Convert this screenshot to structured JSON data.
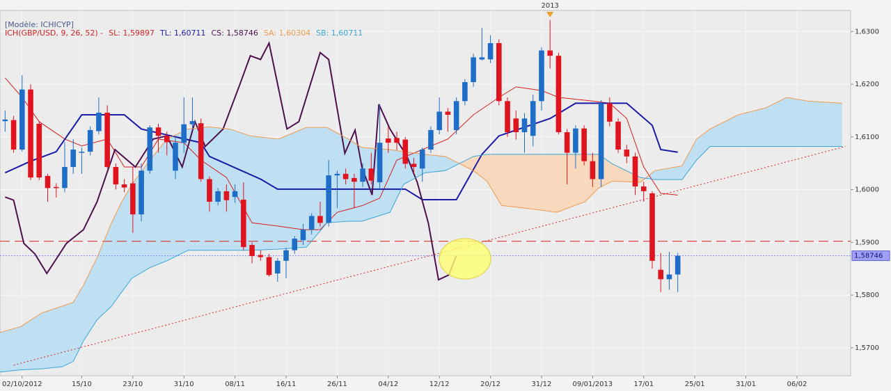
{
  "chart_data": {
    "type": "candlestick",
    "title": "[Modèle: ICHICYP]",
    "indicator": "ICH(GBP/USD, 9, 26, 52) -",
    "up_color": "#1e6ec8",
    "down_color": "#e0141e",
    "xlim": [
      -0.6,
      99.3
    ],
    "ylim": [
      1.5647,
      1.634
    ],
    "grid": true,
    "yticks": [
      {
        "value": 1.57,
        "label": "1,5700"
      },
      {
        "value": 1.58,
        "label": "1,5800"
      },
      {
        "value": 1.59,
        "label": "1,5900"
      },
      {
        "value": 1.6,
        "label": "1,6000"
      },
      {
        "value": 1.61,
        "label": "1,6100"
      },
      {
        "value": 1.62,
        "label": "1,6200"
      },
      {
        "value": 1.63,
        "label": "1,6300"
      }
    ],
    "xticks": [
      {
        "value": 2,
        "label": "02/10/2012"
      },
      {
        "value": 9,
        "label": "15/10"
      },
      {
        "value": 15,
        "label": "23/10"
      },
      {
        "value": 21,
        "label": "31/10"
      },
      {
        "value": 27,
        "label": "08/11"
      },
      {
        "value": 33,
        "label": "16/11"
      },
      {
        "value": 39,
        "label": "26/11"
      },
      {
        "value": 45,
        "label": "04/12"
      },
      {
        "value": 51,
        "label": "12/12"
      },
      {
        "value": 57,
        "label": "20/12"
      },
      {
        "value": 63,
        "label": "31/12"
      },
      {
        "value": 69,
        "label": "09/01/2013"
      },
      {
        "value": 75,
        "label": "17/01"
      },
      {
        "value": 81,
        "label": "25/01"
      },
      {
        "value": 87,
        "label": "31/01"
      },
      {
        "value": 93,
        "label": "06/02"
      }
    ],
    "x": [
      0,
      1,
      2,
      3,
      4,
      5,
      6,
      7,
      8,
      9,
      10,
      11,
      12,
      13,
      14,
      15,
      16,
      17,
      18,
      19,
      20,
      21,
      22,
      23,
      24,
      25,
      26,
      27,
      28,
      29,
      30,
      31,
      32,
      33,
      34,
      35,
      36,
      37,
      38,
      39,
      40,
      41,
      42,
      43,
      44,
      45,
      46,
      47,
      48,
      49,
      50,
      51,
      52,
      53,
      54,
      55,
      56,
      57,
      58,
      59,
      60,
      61,
      62,
      63,
      64,
      65,
      66,
      67,
      68,
      69,
      70,
      71,
      72,
      73,
      74,
      75,
      76,
      77,
      78,
      79
    ],
    "open": [
      1.613,
      1.6132,
      1.6076,
      1.619,
      1.6125,
      1.6026,
      1.6005,
      1.6003,
      1.6043,
      1.607,
      1.6072,
      1.6111,
      1.6146,
      1.6043,
      1.601,
      1.6012,
      1.5953,
      1.6036,
      1.6118,
      1.6102,
      1.6036,
      1.6089,
      1.6124,
      1.6126,
      1.602,
      1.5977,
      1.5997,
      1.5986,
      1.5981,
      1.5895,
      1.5876,
      1.5872,
      1.5841,
      1.5865,
      1.5885,
      1.5904,
      1.5924,
      1.595,
      1.5937,
      1.6027,
      1.603,
      1.6022,
      1.6015,
      1.604,
      1.6014,
      1.6097,
      1.6098,
      1.6095,
      1.6049,
      1.604,
      1.6076,
      1.6113,
      1.6148,
      1.6113,
      1.6168,
      1.6204,
      1.6247,
      1.6247,
      1.6278,
      1.6168,
      1.6135,
      1.6109,
      1.6102,
      1.6168,
      1.6264,
      1.6254,
      1.6109,
      1.607,
      1.6116,
      1.6054,
      1.602,
      1.6164,
      1.6129,
      1.6076,
      1.6063,
      1.6006,
      1.5993,
      1.5848,
      1.583,
      1.5839
    ],
    "high": [
      1.615,
      1.614,
      1.6217,
      1.62,
      1.613,
      1.603,
      1.6012,
      1.609,
      1.6096,
      1.608,
      1.612,
      1.6175,
      1.616,
      1.605,
      1.602,
      1.6043,
      1.605,
      1.6122,
      1.6125,
      1.611,
      1.61,
      1.6175,
      1.6175,
      1.6135,
      1.6025,
      1.6003,
      1.601,
      1.601,
      1.6014,
      1.59,
      1.5885,
      1.5878,
      1.587,
      1.589,
      1.5912,
      1.5935,
      1.5955,
      1.5977,
      1.6056,
      1.6036,
      1.604,
      1.603,
      1.605,
      1.607,
      1.6162,
      1.612,
      1.611,
      1.61,
      1.606,
      1.608,
      1.612,
      1.6175,
      1.6155,
      1.6175,
      1.621,
      1.6258,
      1.6307,
      1.6293,
      1.6285,
      1.6175,
      1.615,
      1.6145,
      1.618,
      1.627,
      1.6322,
      1.626,
      1.6115,
      1.6122,
      1.6122,
      1.607,
      1.617,
      1.6175,
      1.6135,
      1.6085,
      1.607,
      1.6015,
      1.5997,
      1.588,
      1.5882,
      1.588
    ],
    "low": [
      1.611,
      1.607,
      1.6072,
      1.6018,
      1.6018,
      1.5977,
      1.5985,
      1.5995,
      1.603,
      1.603,
      1.6065,
      1.6105,
      1.604,
      1.6,
      1.5995,
      1.5918,
      1.594,
      1.603,
      1.607,
      1.6065,
      1.602,
      1.607,
      1.6115,
      1.6015,
      1.5958,
      1.597,
      1.5958,
      1.5975,
      1.5885,
      1.586,
      1.5865,
      1.5835,
      1.5825,
      1.5832,
      1.5878,
      1.5895,
      1.5915,
      1.593,
      1.593,
      1.5965,
      1.601,
      1.5965,
      1.6005,
      1.601,
      1.6,
      1.607,
      1.6075,
      1.604,
      1.603,
      1.6015,
      1.607,
      1.6105,
      1.611,
      1.6105,
      1.616,
      1.6195,
      1.6245,
      1.624,
      1.616,
      1.61,
      1.6095,
      1.607,
      1.6082,
      1.615,
      1.623,
      1.6105,
      1.601,
      1.604,
      1.6046,
      1.6005,
      1.6005,
      1.612,
      1.607,
      1.605,
      1.599,
      1.5977,
      1.585,
      1.5806,
      1.581,
      1.5806
    ],
    "close": [
      1.6133,
      1.6076,
      1.619,
      1.6023,
      1.6023,
      1.6003,
      1.6003,
      1.6043,
      1.6076,
      1.6072,
      1.6113,
      1.6146,
      1.6043,
      1.601,
      1.6004,
      1.5953,
      1.6036,
      1.6118,
      1.6102,
      1.609,
      1.6089,
      1.6124,
      1.613,
      1.602,
      1.5977,
      1.5997,
      1.598,
      1.5997,
      1.5891,
      1.5874,
      1.5872,
      1.5838,
      1.5865,
      1.5885,
      1.5907,
      1.5924,
      1.595,
      1.5937,
      1.6027,
      1.603,
      1.602,
      1.6015,
      1.604,
      1.6017,
      1.6089,
      1.6089,
      1.6089,
      1.6049,
      1.6043,
      1.6076,
      1.6113,
      1.6148,
      1.6142,
      1.6168,
      1.6204,
      1.6251,
      1.6251,
      1.6278,
      1.6168,
      1.6109,
      1.6109,
      1.6135,
      1.6168,
      1.6264,
      1.6254,
      1.6109,
      1.607,
      1.6116,
      1.6054,
      1.602,
      1.6164,
      1.6129,
      1.6076,
      1.6063,
      1.6006,
      1.5997,
      1.5865,
      1.583,
      1.5839,
      1.58746
    ],
    "lines": [
      {
        "label": "SL: 1,59897",
        "color": "#d42020",
        "x": [
          0,
          2,
          4,
          7,
          9,
          12,
          14,
          16,
          18,
          21,
          23,
          26,
          29,
          32,
          35,
          37,
          39,
          42,
          44,
          46,
          49,
          52,
          55,
          58,
          60,
          63,
          65,
          69,
          71,
          73,
          75,
          77,
          79
        ],
        "values": [
          1.6212,
          1.6175,
          1.6129,
          1.6096,
          1.6083,
          1.6096,
          1.6043,
          1.6043,
          1.6096,
          1.6089,
          1.6056,
          1.6023,
          1.5937,
          1.5931,
          1.5924,
          1.5924,
          1.5957,
          1.597,
          1.5984,
          1.6056,
          1.6076,
          1.6096,
          1.6142,
          1.6175,
          1.6195,
          1.6188,
          1.6175,
          1.6168,
          1.6164,
          1.6135,
          1.6043,
          1.5993,
          1.59897
        ]
      },
      {
        "label": "TL: 1,60711",
        "color": "#1a1aa8",
        "x": [
          0,
          3,
          6,
          9,
          14,
          16,
          23,
          24,
          30,
          32,
          47,
          49,
          53,
          56,
          58,
          64,
          67,
          73,
          76,
          77,
          79
        ],
        "values": [
          1.6032,
          1.6054,
          1.6072,
          1.6142,
          1.6142,
          1.6115,
          1.6089,
          1.6063,
          1.602,
          1.6001,
          1.6001,
          1.5981,
          1.5981,
          1.6067,
          1.6102,
          1.6135,
          1.6164,
          1.6164,
          1.6122,
          1.6076,
          1.60711
        ]
      },
      {
        "label": "CS: 1,58746",
        "color": "#4d0f4d",
        "x": [
          0,
          1.0,
          2.2,
          3.5,
          4.9,
          7.2,
          9.2,
          10.8,
          12.9,
          15.3,
          17.4,
          19.0,
          20.8,
          22.3,
          23.5,
          25.6,
          27.6,
          28.8,
          30.0,
          31.0,
          33.1,
          34.5,
          37.0,
          38.0,
          39.9,
          41.1,
          41.9,
          43.1,
          43.9,
          45.2,
          47.2,
          48.4,
          49.7,
          50.9,
          52.1,
          53
        ],
        "values": [
          1.5986,
          1.598,
          1.5898,
          1.5878,
          1.5841,
          1.5898,
          1.5924,
          1.5977,
          1.6076,
          1.6043,
          1.6096,
          1.6102,
          1.6043,
          1.6129,
          1.6082,
          1.6115,
          1.6201,
          1.6254,
          1.6247,
          1.6278,
          1.6115,
          1.6129,
          1.626,
          1.6247,
          1.6069,
          1.6113,
          1.6043,
          1.599,
          1.6162,
          1.6115,
          1.6063,
          1.6014,
          1.5937,
          1.5829,
          1.5838,
          1.58746
        ]
      },
      {
        "label": "SA: 1,60304",
        "color": "#f09a50",
        "x": [
          -0.6,
          1.8,
          4.3,
          6.7,
          8.0,
          9.2,
          10.8,
          12.5,
          13.7,
          14.9,
          17.0,
          19.0,
          21.5,
          23.9,
          26.4,
          28.8,
          32.1,
          35.4,
          37.8,
          40.3,
          41.9,
          45.2,
          46.8,
          49.3,
          51.7,
          55.0,
          56.6,
          58.3,
          61.5,
          64.8,
          68.1,
          69.7,
          71.3,
          74.6,
          76.3,
          79.5,
          81.2,
          82.8,
          86.1,
          89.3,
          91.8,
          94.2,
          98.3
        ],
        "values": [
          1.5729,
          1.574,
          1.5766,
          1.5779,
          1.5786,
          1.5819,
          1.5871,
          1.5937,
          1.5977,
          1.601,
          1.6056,
          1.6096,
          1.6115,
          1.6119,
          1.6115,
          1.6102,
          1.6096,
          1.6118,
          1.6118,
          1.6096,
          1.608,
          1.6076,
          1.6072,
          1.6067,
          1.6063,
          1.6036,
          1.6016,
          1.597,
          1.5964,
          1.5957,
          1.5977,
          1.6003,
          1.6016,
          1.6014,
          1.6036,
          1.6045,
          1.6096,
          1.6115,
          1.6142,
          1.6155,
          1.6175,
          1.6168,
          1.6164
        ]
      },
      {
        "label": "SB: 1,60711",
        "color": "#3aa6d8",
        "x": [
          -0.6,
          1.8,
          4.3,
          6.7,
          8.0,
          9.2,
          10.8,
          12.5,
          13.7,
          14.9,
          17.0,
          19.0,
          21.5,
          23.9,
          26.4,
          28.8,
          32.1,
          35.4,
          37.8,
          40.3,
          41.9,
          45.2,
          46.8,
          49.3,
          51.7,
          55.0,
          56.6,
          58.3,
          61.5,
          64.8,
          68.1,
          69.7,
          71.3,
          74.6,
          76.3,
          79.5,
          81.2,
          82.8,
          86.1,
          89.3,
          91.8,
          94.2,
          98.3
        ],
        "values": [
          1.5654,
          1.5658,
          1.566,
          1.5664,
          1.5674,
          1.5713,
          1.5753,
          1.5779,
          1.5806,
          1.5832,
          1.5852,
          1.5865,
          1.5885,
          1.5885,
          1.5885,
          1.5885,
          1.5887,
          1.5891,
          1.5937,
          1.594,
          1.594,
          1.5957,
          1.601,
          1.6032,
          1.6036,
          1.6063,
          1.6067,
          1.6067,
          1.6067,
          1.6067,
          1.6067,
          1.6067,
          1.6049,
          1.6023,
          1.6019,
          1.6019,
          1.6056,
          1.6082,
          1.6082,
          1.6082,
          1.6082,
          1.6082,
          1.6082
        ]
      }
    ],
    "cloud_up_color": "#bfe0f2",
    "cloud_down_color": "#f8d9bd",
    "hline": {
      "value": 1.5902,
      "color": "#d9302c"
    },
    "trend_line": {
      "x": [
        1.0,
        98.7
      ],
      "values": [
        1.5667,
        1.6082
      ],
      "color": "#e02020"
    },
    "last_price": {
      "value": 1.58746,
      "label": "1,58746",
      "color": "#8080ff"
    },
    "marker": {
      "x": 64,
      "label": "2013",
      "color": "#f0a030"
    }
  }
}
